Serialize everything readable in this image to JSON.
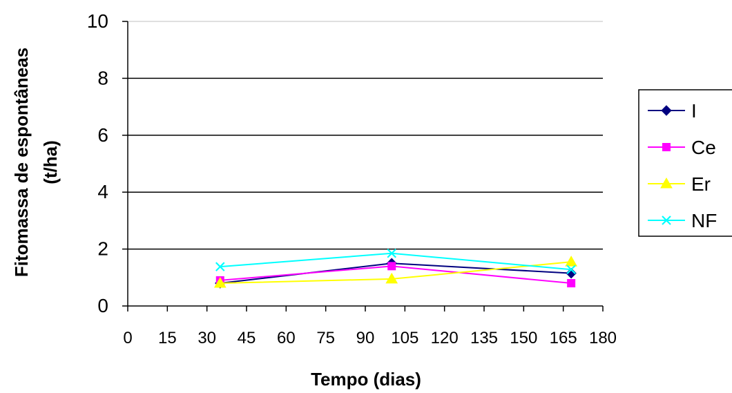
{
  "chart_data": {
    "type": "line",
    "title": "",
    "xlabel": "Tempo (dias)",
    "ylabel_lines": [
      "Fitomassa de espontâneas",
      "(t/ha)"
    ],
    "xlim": [
      0,
      180
    ],
    "ylim": [
      0,
      10
    ],
    "xticks": [
      0,
      15,
      30,
      45,
      60,
      75,
      90,
      105,
      120,
      135,
      150,
      165,
      180
    ],
    "yticks": [
      0,
      2,
      4,
      6,
      8,
      10
    ],
    "grid": "horizontal",
    "legend_position": "right",
    "x": [
      35,
      100,
      168
    ],
    "series": [
      {
        "name": "I",
        "values": [
          0.8,
          1.5,
          1.15
        ],
        "color": "#000080",
        "marker": "diamond"
      },
      {
        "name": "Ce",
        "values": [
          0.9,
          1.4,
          0.8
        ],
        "color": "#ff00ff",
        "marker": "square"
      },
      {
        "name": "Er",
        "values": [
          0.8,
          0.95,
          1.55
        ],
        "color": "#ffff00",
        "marker": "triangle"
      },
      {
        "name": "NF",
        "values": [
          1.38,
          1.85,
          1.28
        ],
        "color": "#00ffff",
        "marker": "x"
      }
    ]
  }
}
